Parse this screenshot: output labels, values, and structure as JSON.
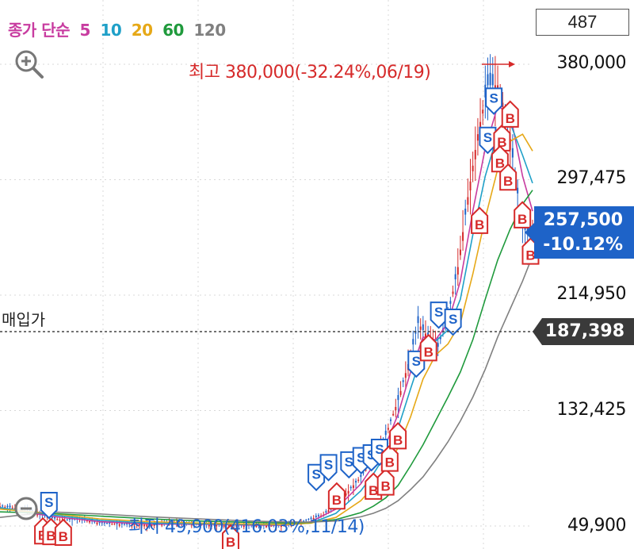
{
  "legend": {
    "title": "종가 단순",
    "title_color": "#c83ca0",
    "periods": [
      {
        "label": "5",
        "color": "#c83ca0"
      },
      {
        "label": "10",
        "color": "#1fa0c8"
      },
      {
        "label": "20",
        "color": "#e6a817"
      },
      {
        "label": "60",
        "color": "#1f9a3c"
      },
      {
        "label": "120",
        "color": "#808080"
      }
    ]
  },
  "count_box": "487",
  "current_price": {
    "price": "257,500",
    "change": "-10.12%",
    "value": 257500
  },
  "buy_price": {
    "label": "매입가",
    "value_text": "187,398",
    "value": 187398
  },
  "high_marker": {
    "text": "최고 380,000(-32.24%,06/19)",
    "value": 380000
  },
  "low_marker": {
    "text": "최저 49,900(416.03%,11/14)",
    "value": 49900
  },
  "colors": {
    "up": "#d62a2a",
    "down": "#1e63c8",
    "grid": "#d8d8d8"
  },
  "icons": {
    "zoom_in": "zoom-in-icon",
    "zoom_out": "zoom-out-icon"
  },
  "chart_data": {
    "type": "line",
    "y_ticks": [
      {
        "value": 380000,
        "label": "380,000"
      },
      {
        "value": 297475,
        "label": "297,475"
      },
      {
        "value": 214950,
        "label": "214,950"
      },
      {
        "value": 132425,
        "label": "132,425"
      },
      {
        "value": 49900,
        "label": "49,900"
      }
    ],
    "ylim": [
      49900,
      380000
    ],
    "grid": true,
    "n_bars": 200,
    "series": [
      {
        "period": 1,
        "color": "#1e63c8",
        "points": [
          [
            0,
            64000
          ],
          [
            10,
            62000
          ],
          [
            18,
            57000
          ],
          [
            25,
            54000
          ],
          [
            32,
            55000
          ],
          [
            40,
            52000
          ],
          [
            50,
            51000
          ],
          [
            60,
            50800
          ],
          [
            70,
            52500
          ],
          [
            80,
            51000
          ],
          [
            90,
            50500
          ],
          [
            100,
            50200
          ],
          [
            110,
            50000
          ],
          [
            120,
            52000
          ],
          [
            130,
            58000
          ],
          [
            135,
            66000
          ],
          [
            140,
            75000
          ],
          [
            145,
            85000
          ],
          [
            150,
            98000
          ],
          [
            155,
            115000
          ],
          [
            160,
            140000
          ],
          [
            165,
            172000
          ],
          [
            168,
            195000
          ],
          [
            172,
            185000
          ],
          [
            176,
            178000
          ],
          [
            180,
            200000
          ],
          [
            184,
            235000
          ],
          [
            188,
            285000
          ],
          [
            192,
            330000
          ],
          [
            196,
            365000
          ],
          [
            200,
            365000
          ],
          [
            204,
            340000
          ],
          [
            207,
            300000
          ],
          [
            210,
            263000
          ],
          [
            214,
            257500
          ]
        ]
      },
      {
        "period": 5,
        "color": "#c83ca0",
        "points": [
          [
            0,
            63000
          ],
          [
            20,
            57000
          ],
          [
            40,
            53000
          ],
          [
            60,
            51200
          ],
          [
            80,
            51200
          ],
          [
            100,
            50600
          ],
          [
            115,
            50500
          ],
          [
            125,
            53000
          ],
          [
            135,
            62000
          ],
          [
            145,
            80000
          ],
          [
            150,
            93000
          ],
          [
            155,
            108000
          ],
          [
            160,
            130000
          ],
          [
            165,
            160000
          ],
          [
            170,
            185000
          ],
          [
            175,
            183000
          ],
          [
            180,
            195000
          ],
          [
            185,
            225000
          ],
          [
            190,
            275000
          ],
          [
            195,
            320000
          ],
          [
            200,
            350000
          ],
          [
            205,
            345000
          ],
          [
            210,
            300000
          ],
          [
            214,
            275000
          ]
        ]
      },
      {
        "period": 10,
        "color": "#1fa0c8",
        "points": [
          [
            0,
            63000
          ],
          [
            20,
            58000
          ],
          [
            40,
            54000
          ],
          [
            60,
            52000
          ],
          [
            80,
            51500
          ],
          [
            100,
            51000
          ],
          [
            115,
            50800
          ],
          [
            125,
            52000
          ],
          [
            135,
            59000
          ],
          [
            145,
            75000
          ],
          [
            150,
            87000
          ],
          [
            155,
            101000
          ],
          [
            160,
            120000
          ],
          [
            165,
            148000
          ],
          [
            170,
            175000
          ],
          [
            175,
            182000
          ],
          [
            180,
            190000
          ],
          [
            185,
            212000
          ],
          [
            190,
            258000
          ],
          [
            195,
            300000
          ],
          [
            200,
            330000
          ],
          [
            205,
            338000
          ],
          [
            210,
            315000
          ],
          [
            214,
            295000
          ]
        ]
      },
      {
        "period": 20,
        "color": "#e6a817",
        "points": [
          [
            0,
            62000
          ],
          [
            20,
            59000
          ],
          [
            40,
            55000
          ],
          [
            60,
            53000
          ],
          [
            80,
            52000
          ],
          [
            100,
            51300
          ],
          [
            115,
            51000
          ],
          [
            125,
            52000
          ],
          [
            135,
            56000
          ],
          [
            145,
            68000
          ],
          [
            150,
            78000
          ],
          [
            155,
            90000
          ],
          [
            160,
            106000
          ],
          [
            165,
            128000
          ],
          [
            170,
            155000
          ],
          [
            175,
            172000
          ],
          [
            180,
            180000
          ],
          [
            185,
            195000
          ],
          [
            190,
            230000
          ],
          [
            195,
            270000
          ],
          [
            200,
            305000
          ],
          [
            205,
            325000
          ],
          [
            210,
            330000
          ],
          [
            214,
            318000
          ]
        ]
      },
      {
        "period": 60,
        "color": "#1f9a3c",
        "points": [
          [
            0,
            60000
          ],
          [
            20,
            59000
          ],
          [
            40,
            57000
          ],
          [
            60,
            55000
          ],
          [
            80,
            53500
          ],
          [
            100,
            52500
          ],
          [
            115,
            52000
          ],
          [
            125,
            52500
          ],
          [
            135,
            54500
          ],
          [
            145,
            59500
          ],
          [
            150,
            64000
          ],
          [
            155,
            70000
          ],
          [
            160,
            79000
          ],
          [
            165,
            93000
          ],
          [
            170,
            108000
          ],
          [
            175,
            125000
          ],
          [
            180,
            142000
          ],
          [
            185,
            160000
          ],
          [
            190,
            183000
          ],
          [
            195,
            212000
          ],
          [
            200,
            240000
          ],
          [
            205,
            262000
          ],
          [
            210,
            280000
          ],
          [
            214,
            290000
          ]
        ]
      },
      {
        "period": 120,
        "color": "#808080",
        "points": [
          [
            0,
            56000
          ],
          [
            20,
            60000
          ],
          [
            40,
            58500
          ],
          [
            60,
            56500
          ],
          [
            80,
            55000
          ],
          [
            100,
            53500
          ],
          [
            115,
            52800
          ],
          [
            125,
            52700
          ],
          [
            135,
            53500
          ],
          [
            145,
            56500
          ],
          [
            150,
            59000
          ],
          [
            155,
            62500
          ],
          [
            160,
            68000
          ],
          [
            165,
            76000
          ],
          [
            170,
            85000
          ],
          [
            175,
            97000
          ],
          [
            180,
            110000
          ],
          [
            185,
            125000
          ],
          [
            190,
            142000
          ],
          [
            195,
            162000
          ],
          [
            200,
            185000
          ],
          [
            205,
            205000
          ],
          [
            210,
            225000
          ],
          [
            214,
            243000
          ]
        ]
      }
    ],
    "trade_markers": [
      {
        "type": "S",
        "bar": 24,
        "value": 59000
      },
      {
        "type": "B",
        "bar": 21,
        "value": 52000
      },
      {
        "type": "B",
        "bar": 25,
        "value": 51500
      },
      {
        "type": "B",
        "bar": 31,
        "value": 51000
      },
      {
        "type": "B",
        "bar": 113,
        "value": 47000
      },
      {
        "type": "S",
        "bar": 155,
        "value": 79000
      },
      {
        "type": "S",
        "bar": 161,
        "value": 86000
      },
      {
        "type": "B",
        "bar": 165,
        "value": 77000
      },
      {
        "type": "S",
        "bar": 171,
        "value": 88000
      },
      {
        "type": "S",
        "bar": 177,
        "value": 91000
      },
      {
        "type": "S",
        "bar": 182,
        "value": 93000
      },
      {
        "type": "S",
        "bar": 186,
        "value": 97000
      },
      {
        "type": "B",
        "bar": 183,
        "value": 84000
      },
      {
        "type": "B",
        "bar": 189,
        "value": 87000
      },
      {
        "type": "B",
        "bar": 191,
        "value": 104000
      },
      {
        "type": "B",
        "bar": 195,
        "value": 120000
      },
      {
        "type": "S",
        "bar": 204,
        "value": 160000
      },
      {
        "type": "B",
        "bar": 210,
        "value": 183000
      },
      {
        "type": "S",
        "bar": 215,
        "value": 195000
      },
      {
        "type": "S",
        "bar": 222,
        "value": 190000
      },
      {
        "type": "B",
        "bar": 235,
        "value": 274000
      },
      {
        "type": "S",
        "bar": 239,
        "value": 320000
      },
      {
        "type": "S",
        "bar": 242,
        "value": 348000
      },
      {
        "type": "B",
        "bar": 246,
        "value": 333000
      },
      {
        "type": "B",
        "bar": 250,
        "value": 350000
      },
      {
        "type": "B",
        "bar": 245,
        "value": 318000
      },
      {
        "type": "B",
        "bar": 249,
        "value": 305000
      },
      {
        "type": "B",
        "bar": 256,
        "value": 278000
      },
      {
        "type": "B",
        "bar": 260,
        "value": 252000
      }
    ]
  }
}
